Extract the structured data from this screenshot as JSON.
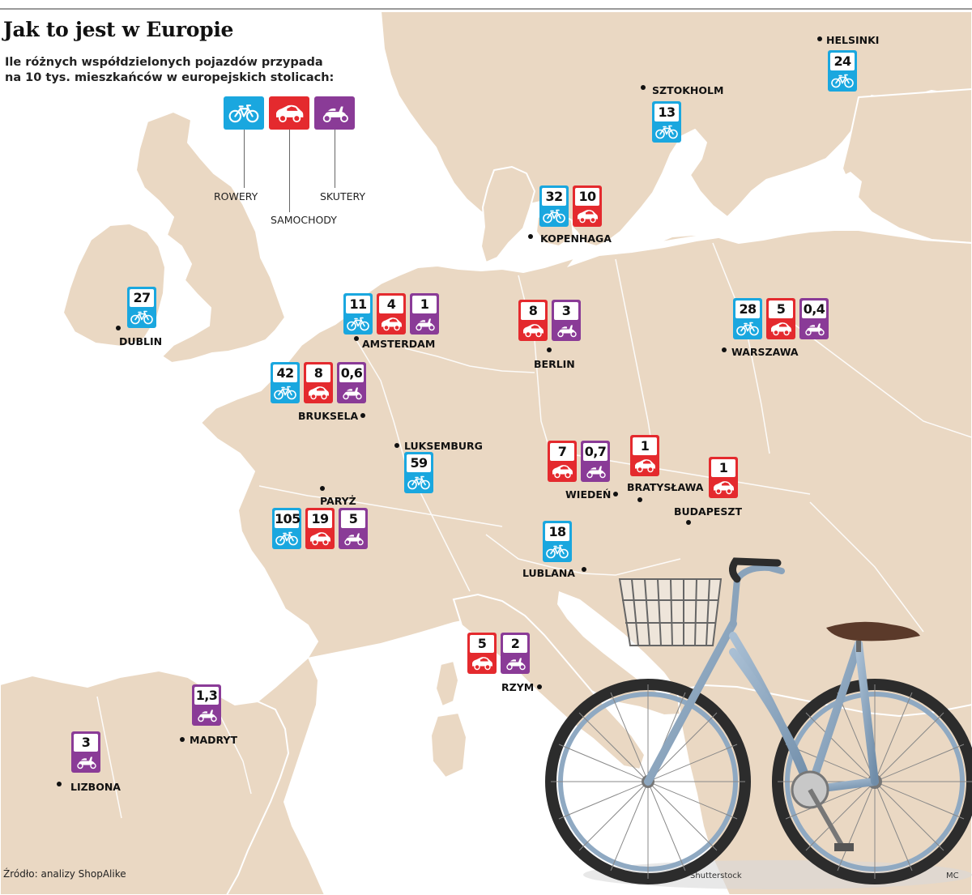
{
  "title": "Jak to jest w Europie",
  "subtitle": [
    "Ile różnych współdzielonych pojazdów przypada",
    "na 10 tys. mieszkańców w europejskich stolicach:"
  ],
  "colors": {
    "bike": "#1aa7df",
    "car": "#e42a2e",
    "scooter": "#8a3b97",
    "land": "#ead8c3",
    "sea": "#ffffff"
  },
  "legend": {
    "bike": "ROWERY",
    "car": "SAMOCHODY",
    "scooter": "SKUTERY"
  },
  "cities": [
    {
      "name": "HELSINKI",
      "badges": [
        {
          "type": "bike",
          "value": "24"
        }
      ]
    },
    {
      "name": "SZTOKHOLM",
      "badges": [
        {
          "type": "bike",
          "value": "13"
        }
      ]
    },
    {
      "name": "KOPENHAGA",
      "badges": [
        {
          "type": "bike",
          "value": "32"
        },
        {
          "type": "car",
          "value": "10"
        }
      ]
    },
    {
      "name": "DUBLIN",
      "badges": [
        {
          "type": "bike",
          "value": "27"
        }
      ]
    },
    {
      "name": "AMSTERDAM",
      "badges": [
        {
          "type": "bike",
          "value": "11"
        },
        {
          "type": "car",
          "value": "4"
        },
        {
          "type": "scooter",
          "value": "1"
        }
      ]
    },
    {
      "name": "BERLIN",
      "badges": [
        {
          "type": "car",
          "value": "8"
        },
        {
          "type": "scooter",
          "value": "3"
        }
      ]
    },
    {
      "name": "WARSZAWA",
      "badges": [
        {
          "type": "bike",
          "value": "28"
        },
        {
          "type": "car",
          "value": "5"
        },
        {
          "type": "scooter",
          "value": "0,4"
        }
      ]
    },
    {
      "name": "BRUKSELA",
      "badges": [
        {
          "type": "bike",
          "value": "42"
        },
        {
          "type": "car",
          "value": "8"
        },
        {
          "type": "scooter",
          "value": "0,6"
        }
      ]
    },
    {
      "name": "LUKSEMBURG",
      "badges": [
        {
          "type": "bike",
          "value": "59"
        }
      ]
    },
    {
      "name": "WIEDEŃ",
      "badges": [
        {
          "type": "car",
          "value": "7"
        },
        {
          "type": "scooter",
          "value": "0,7"
        }
      ]
    },
    {
      "name": "BRATYSŁAWA",
      "badges": [
        {
          "type": "car",
          "value": "1"
        }
      ]
    },
    {
      "name": "BUDAPESZT",
      "badges": [
        {
          "type": "car",
          "value": "1"
        }
      ]
    },
    {
      "name": "PARYŻ",
      "badges": [
        {
          "type": "bike",
          "value": "105"
        },
        {
          "type": "car",
          "value": "19"
        },
        {
          "type": "scooter",
          "value": "5"
        }
      ]
    },
    {
      "name": "LUBLANA",
      "badges": [
        {
          "type": "bike",
          "value": "18"
        }
      ]
    },
    {
      "name": "RZYM",
      "badges": [
        {
          "type": "car",
          "value": "5"
        },
        {
          "type": "scooter",
          "value": "2"
        }
      ]
    },
    {
      "name": "MADRYT",
      "badges": [
        {
          "type": "scooter",
          "value": "1,3"
        }
      ]
    },
    {
      "name": "LIZBONA",
      "badges": [
        {
          "type": "scooter",
          "value": "3"
        }
      ]
    }
  ],
  "source": "Źródło: analizy ShopAlike",
  "photo_credit": "Shutterstock",
  "author": "MC"
}
